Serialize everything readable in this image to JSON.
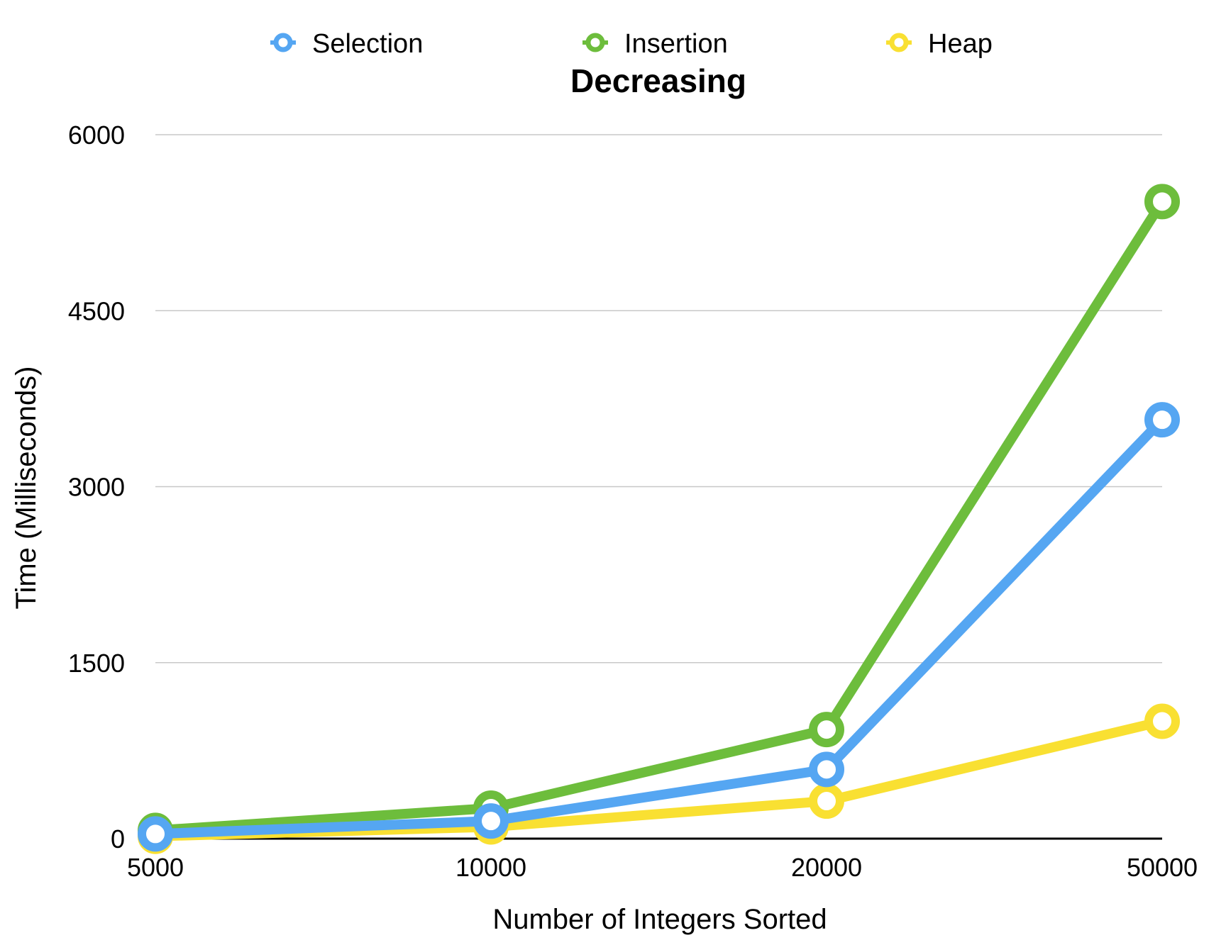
{
  "chart_data": {
    "type": "line",
    "title": "Decreasing",
    "xlabel": "Number of Integers Sorted",
    "ylabel": "Time (Milliseconds)",
    "categories": [
      "5000",
      "10000",
      "20000",
      "50000"
    ],
    "ylim": [
      0,
      6000
    ],
    "yticks": [
      0,
      1500,
      3000,
      4500,
      6000
    ],
    "grid": true,
    "legend_position": "top",
    "series": [
      {
        "name": "Selection",
        "color": "#55a6f2",
        "values": [
          40,
          150,
          590,
          3570
        ]
      },
      {
        "name": "Insertion",
        "color": "#6dbd3c",
        "values": [
          70,
          260,
          930,
          5430
        ]
      },
      {
        "name": "Heap",
        "color": "#f9e032",
        "values": [
          20,
          100,
          320,
          1000
        ]
      }
    ]
  }
}
